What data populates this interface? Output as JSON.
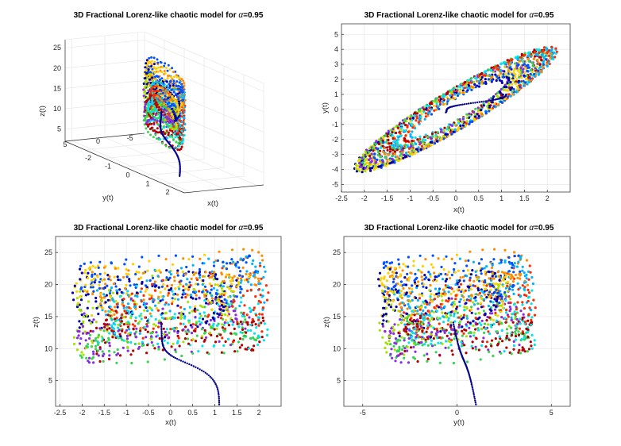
{
  "chart_data": [
    {
      "type": "scatter",
      "view": "3d",
      "title_prefix": "3D Fractional Lorenz-like chaotic model for ",
      "alpha_symbol": "α",
      "alpha_value": "=0.95",
      "xlabel": "x(t)",
      "ylabel": "y(t)",
      "zlabel": "z(t)",
      "xlim": [
        -3,
        3
      ],
      "ylim": [
        -6,
        6
      ],
      "zlim": [
        2,
        27
      ],
      "xticks": [
        "-2",
        "-1",
        "0",
        "1",
        "2"
      ],
      "yticks": [
        "5",
        "0",
        "-5"
      ],
      "zticks": [
        "5",
        "10",
        "15",
        "20",
        "25"
      ],
      "grid": true
    },
    {
      "type": "scatter",
      "view": "x-y",
      "title_prefix": "3D Fractional Lorenz-like chaotic model for ",
      "alpha_symbol": "α",
      "alpha_value": "=0.95",
      "xlabel": "x(t)",
      "ylabel": "y(t)",
      "xlim": [
        -2.5,
        2.5
      ],
      "ylim": [
        -5.5,
        5.7
      ],
      "xticks": [
        "-2.5",
        "-2",
        "-1.5",
        "-1",
        "-0.5",
        "0",
        "0.5",
        "1",
        "1.5",
        "2"
      ],
      "yticks": [
        "5",
        "4",
        "3",
        "2",
        "1",
        "0",
        "-1",
        "-2",
        "-3",
        "-4",
        "-5"
      ],
      "grid": true
    },
    {
      "type": "scatter",
      "view": "x-z",
      "title_prefix": "3D Fractional Lorenz-like chaotic model for ",
      "alpha_symbol": "α",
      "alpha_value": "=0.95",
      "xlabel": "x(t)",
      "ylabel": "z(t)",
      "xlim": [
        -2.6,
        2.5
      ],
      "ylim": [
        1,
        27.5
      ],
      "xticks": [
        "-2.5",
        "-2",
        "-1.5",
        "-1",
        "-0.5",
        "0",
        "0.5",
        "1",
        "1.5",
        "2"
      ],
      "yticks": [
        "25",
        "20",
        "15",
        "10",
        "5"
      ],
      "grid": true
    },
    {
      "type": "scatter",
      "view": "y-z",
      "title_prefix": "3D Fractional Lorenz-like chaotic model for ",
      "alpha_symbol": "α",
      "alpha_value": "=0.95",
      "xlabel": "y(t)",
      "ylabel": "z(t)",
      "xlim": [
        -6,
        6
      ],
      "ylim": [
        1,
        27.5
      ],
      "xticks": [
        "-5",
        "0",
        "5"
      ],
      "yticks": [
        "25",
        "20",
        "15",
        "10",
        "5"
      ],
      "grid": true
    }
  ],
  "colors": {
    "palette": [
      "#0000aa",
      "#0050ff",
      "#00b4ff",
      "#00e5ee",
      "#39d353",
      "#a8e000",
      "#ffd000",
      "#ff8c00",
      "#ff2a00",
      "#b30000",
      "#8a2be2"
    ],
    "transient": "#00008b"
  }
}
